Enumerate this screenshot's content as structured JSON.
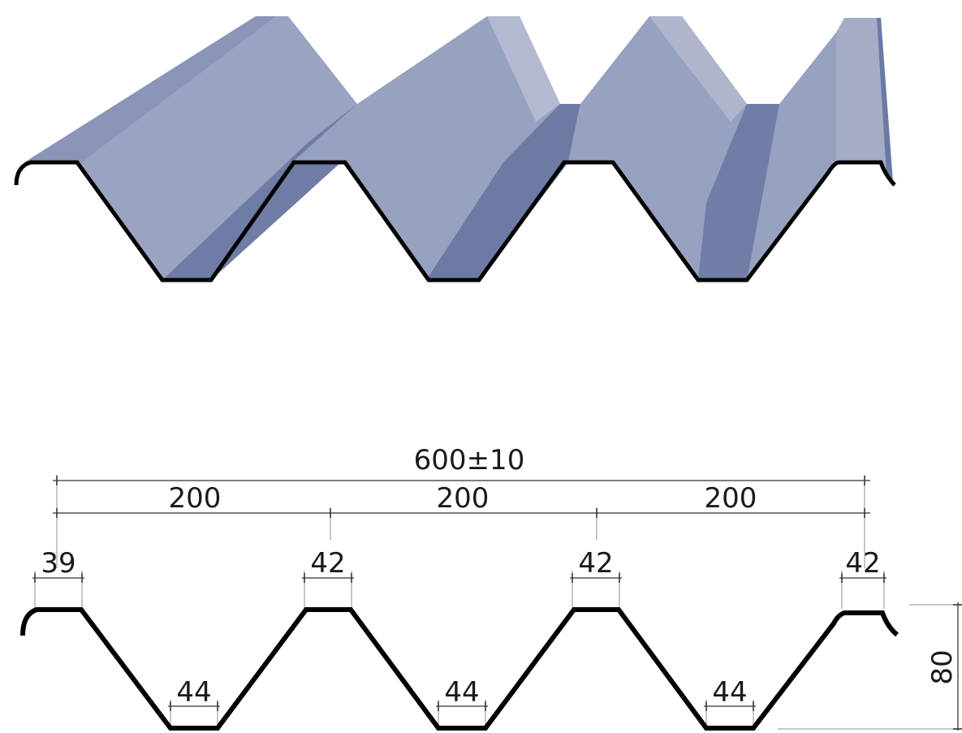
{
  "colors": {
    "background": "#ffffff",
    "sheet_light": "#a7aec8",
    "sheet_mid": "#8f99ba",
    "sheet_dark": "#6b7aa4",
    "sheet_shadow": "#5a6894",
    "outline": "#000000",
    "dimension_line": "#555555",
    "extension_line": "#b5b5b5"
  },
  "dimensions": {
    "total_width": "600±10",
    "pitch_1": "200",
    "pitch_2": "200",
    "pitch_3": "200",
    "crest_width_left": "39",
    "crest_width_1": "42",
    "crest_width_2": "42",
    "crest_width_right": "42",
    "valley_width_1": "44",
    "valley_width_2": "44",
    "valley_width_3": "44",
    "height": "80"
  }
}
